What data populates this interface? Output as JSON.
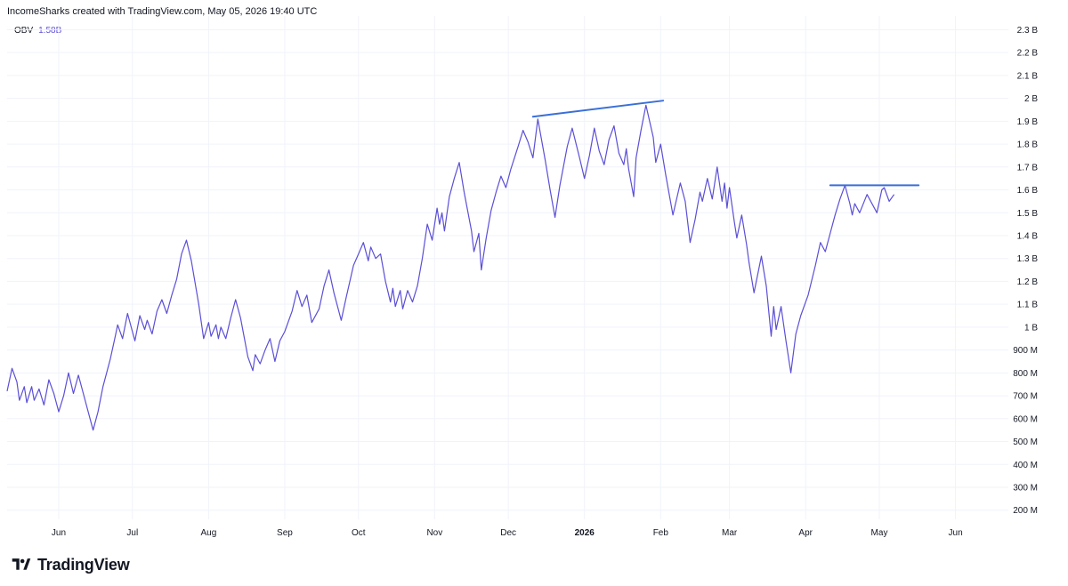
{
  "header": {
    "text": "IncomeSharks created with TradingView.com, May 05, 2026 19:40 UTC"
  },
  "legend": {
    "name": "OBV",
    "value": "1.58B"
  },
  "logo": {
    "text": "TradingView",
    "icon": "tradingview-logo-icon"
  },
  "colors": {
    "series": "#5b4fd6",
    "trendline": "#3a6fd8",
    "grid": "#f0f3fa",
    "text": "#131722"
  },
  "chart_data": {
    "type": "line",
    "title": "",
    "ylabel": "",
    "xlabel": "",
    "grid": true,
    "y_unit": "OBV",
    "ylim": [
      0.16,
      2.36
    ],
    "y_ticks": [
      {
        "value": 2.3,
        "label": "2.3 B"
      },
      {
        "value": 2.2,
        "label": "2.2 B"
      },
      {
        "value": 2.1,
        "label": "2.1 B"
      },
      {
        "value": 2.0,
        "label": "2 B"
      },
      {
        "value": 1.9,
        "label": "1.9 B"
      },
      {
        "value": 1.8,
        "label": "1.8 B"
      },
      {
        "value": 1.7,
        "label": "1.7 B"
      },
      {
        "value": 1.6,
        "label": "1.6 B"
      },
      {
        "value": 1.5,
        "label": "1.5 B"
      },
      {
        "value": 1.4,
        "label": "1.4 B"
      },
      {
        "value": 1.3,
        "label": "1.3 B"
      },
      {
        "value": 1.2,
        "label": "1.2 B"
      },
      {
        "value": 1.1,
        "label": "1.1 B"
      },
      {
        "value": 1.0,
        "label": "1 B"
      },
      {
        "value": 0.9,
        "label": "900 M"
      },
      {
        "value": 0.8,
        "label": "800 M"
      },
      {
        "value": 0.7,
        "label": "700 M"
      },
      {
        "value": 0.6,
        "label": "600 M"
      },
      {
        "value": 0.5,
        "label": "500 M"
      },
      {
        "value": 0.4,
        "label": "400 M"
      },
      {
        "value": 0.3,
        "label": "300 M"
      },
      {
        "value": 0.2,
        "label": "200 M"
      }
    ],
    "x_ticks": [
      {
        "date": "2025-06-01",
        "label": "Jun"
      },
      {
        "date": "2025-07-01",
        "label": "Jul"
      },
      {
        "date": "2025-08-01",
        "label": "Aug"
      },
      {
        "date": "2025-09-01",
        "label": "Sep"
      },
      {
        "date": "2025-10-01",
        "label": "Oct"
      },
      {
        "date": "2025-11-01",
        "label": "Nov"
      },
      {
        "date": "2025-12-01",
        "label": "Dec"
      },
      {
        "date": "2026-01-01",
        "label": "2026",
        "bold": true
      },
      {
        "date": "2026-02-01",
        "label": "Feb"
      },
      {
        "date": "2026-03-01",
        "label": "Mar"
      },
      {
        "date": "2026-04-01",
        "label": "Apr"
      },
      {
        "date": "2026-05-01",
        "label": "May"
      },
      {
        "date": "2026-06-01",
        "label": "Jun"
      }
    ],
    "xlim": [
      "2025-05-11",
      "2026-06-16"
    ],
    "series": [
      {
        "color": "#5b4fd6",
        "points": [
          [
            "2025-05-11",
            0.72
          ],
          [
            "2025-05-13",
            0.82
          ],
          [
            "2025-05-15",
            0.76
          ],
          [
            "2025-05-16",
            0.68
          ],
          [
            "2025-05-18",
            0.74
          ],
          [
            "2025-05-19",
            0.67
          ],
          [
            "2025-05-21",
            0.74
          ],
          [
            "2025-05-22",
            0.68
          ],
          [
            "2025-05-24",
            0.73
          ],
          [
            "2025-05-26",
            0.66
          ],
          [
            "2025-05-28",
            0.77
          ],
          [
            "2025-05-30",
            0.71
          ],
          [
            "2025-06-01",
            0.63
          ],
          [
            "2025-06-03",
            0.7
          ],
          [
            "2025-06-05",
            0.8
          ],
          [
            "2025-06-07",
            0.71
          ],
          [
            "2025-06-09",
            0.79
          ],
          [
            "2025-06-11",
            0.71
          ],
          [
            "2025-06-13",
            0.63
          ],
          [
            "2025-06-15",
            0.55
          ],
          [
            "2025-06-17",
            0.63
          ],
          [
            "2025-06-19",
            0.74
          ],
          [
            "2025-06-22",
            0.86
          ],
          [
            "2025-06-24",
            0.96
          ],
          [
            "2025-06-25",
            1.01
          ],
          [
            "2025-06-27",
            0.95
          ],
          [
            "2025-06-29",
            1.06
          ],
          [
            "2025-07-01",
            0.98
          ],
          [
            "2025-07-02",
            0.94
          ],
          [
            "2025-07-04",
            1.05
          ],
          [
            "2025-07-06",
            0.99
          ],
          [
            "2025-07-07",
            1.03
          ],
          [
            "2025-07-09",
            0.97
          ],
          [
            "2025-07-11",
            1.07
          ],
          [
            "2025-07-13",
            1.12
          ],
          [
            "2025-07-15",
            1.06
          ],
          [
            "2025-07-17",
            1.14
          ],
          [
            "2025-07-19",
            1.21
          ],
          [
            "2025-07-21",
            1.32
          ],
          [
            "2025-07-23",
            1.38
          ],
          [
            "2025-07-25",
            1.29
          ],
          [
            "2025-07-28",
            1.1
          ],
          [
            "2025-07-30",
            0.95
          ],
          [
            "2025-08-01",
            1.02
          ],
          [
            "2025-08-02",
            0.96
          ],
          [
            "2025-08-04",
            1.01
          ],
          [
            "2025-08-05",
            0.95
          ],
          [
            "2025-08-06",
            1.0
          ],
          [
            "2025-08-08",
            0.95
          ],
          [
            "2025-08-10",
            1.04
          ],
          [
            "2025-08-12",
            1.12
          ],
          [
            "2025-08-14",
            1.04
          ],
          [
            "2025-08-17",
            0.87
          ],
          [
            "2025-08-19",
            0.81
          ],
          [
            "2025-08-20",
            0.88
          ],
          [
            "2025-08-22",
            0.84
          ],
          [
            "2025-08-24",
            0.9
          ],
          [
            "2025-08-26",
            0.95
          ],
          [
            "2025-08-28",
            0.85
          ],
          [
            "2025-08-30",
            0.94
          ],
          [
            "2025-09-01",
            0.98
          ],
          [
            "2025-09-04",
            1.07
          ],
          [
            "2025-09-06",
            1.16
          ],
          [
            "2025-09-08",
            1.09
          ],
          [
            "2025-09-10",
            1.14
          ],
          [
            "2025-09-12",
            1.02
          ],
          [
            "2025-09-15",
            1.08
          ],
          [
            "2025-09-17",
            1.18
          ],
          [
            "2025-09-19",
            1.25
          ],
          [
            "2025-09-21",
            1.15
          ],
          [
            "2025-09-24",
            1.03
          ],
          [
            "2025-09-26",
            1.13
          ],
          [
            "2025-09-29",
            1.27
          ],
          [
            "2025-10-01",
            1.32
          ],
          [
            "2025-10-03",
            1.37
          ],
          [
            "2025-10-05",
            1.29
          ],
          [
            "2025-10-06",
            1.35
          ],
          [
            "2025-10-08",
            1.3
          ],
          [
            "2025-10-10",
            1.32
          ],
          [
            "2025-10-12",
            1.2
          ],
          [
            "2025-10-14",
            1.11
          ],
          [
            "2025-10-15",
            1.17
          ],
          [
            "2025-10-16",
            1.09
          ],
          [
            "2025-10-18",
            1.16
          ],
          [
            "2025-10-19",
            1.08
          ],
          [
            "2025-10-21",
            1.16
          ],
          [
            "2025-10-23",
            1.11
          ],
          [
            "2025-10-25",
            1.18
          ],
          [
            "2025-10-27",
            1.3
          ],
          [
            "2025-10-29",
            1.45
          ],
          [
            "2025-10-31",
            1.38
          ],
          [
            "2025-11-02",
            1.52
          ],
          [
            "2025-11-03",
            1.45
          ],
          [
            "2025-11-04",
            1.5
          ],
          [
            "2025-11-05",
            1.42
          ],
          [
            "2025-11-07",
            1.57
          ],
          [
            "2025-11-09",
            1.65
          ],
          [
            "2025-11-11",
            1.72
          ],
          [
            "2025-11-13",
            1.59
          ],
          [
            "2025-11-16",
            1.42
          ],
          [
            "2025-11-17",
            1.33
          ],
          [
            "2025-11-19",
            1.41
          ],
          [
            "2025-11-20",
            1.25
          ],
          [
            "2025-11-22",
            1.39
          ],
          [
            "2025-11-24",
            1.51
          ],
          [
            "2025-11-26",
            1.59
          ],
          [
            "2025-11-28",
            1.66
          ],
          [
            "2025-11-30",
            1.61
          ],
          [
            "2025-12-02",
            1.69
          ],
          [
            "2025-12-05",
            1.79
          ],
          [
            "2025-12-07",
            1.86
          ],
          [
            "2025-12-09",
            1.81
          ],
          [
            "2025-12-11",
            1.74
          ],
          [
            "2025-12-13",
            1.91
          ],
          [
            "2025-12-16",
            1.73
          ],
          [
            "2025-12-18",
            1.6
          ],
          [
            "2025-12-20",
            1.48
          ],
          [
            "2025-12-22",
            1.62
          ],
          [
            "2025-12-25",
            1.79
          ],
          [
            "2025-12-27",
            1.87
          ],
          [
            "2025-12-30",
            1.74
          ],
          [
            "2026-01-01",
            1.65
          ],
          [
            "2026-01-03",
            1.75
          ],
          [
            "2026-01-05",
            1.87
          ],
          [
            "2026-01-07",
            1.77
          ],
          [
            "2026-01-09",
            1.71
          ],
          [
            "2026-01-11",
            1.82
          ],
          [
            "2026-01-13",
            1.88
          ],
          [
            "2026-01-15",
            1.76
          ],
          [
            "2026-01-17",
            1.71
          ],
          [
            "2026-01-18",
            1.78
          ],
          [
            "2026-01-19",
            1.69
          ],
          [
            "2026-01-21",
            1.57
          ],
          [
            "2026-01-22",
            1.74
          ],
          [
            "2026-01-24",
            1.86
          ],
          [
            "2026-01-26",
            1.97
          ],
          [
            "2026-01-29",
            1.83
          ],
          [
            "2026-01-30",
            1.72
          ],
          [
            "2026-02-01",
            1.8
          ],
          [
            "2026-02-03",
            1.67
          ],
          [
            "2026-02-06",
            1.49
          ],
          [
            "2026-02-09",
            1.63
          ],
          [
            "2026-02-11",
            1.55
          ],
          [
            "2026-02-13",
            1.37
          ],
          [
            "2026-02-15",
            1.47
          ],
          [
            "2026-02-17",
            1.59
          ],
          [
            "2026-02-18",
            1.55
          ],
          [
            "2026-02-20",
            1.65
          ],
          [
            "2026-02-22",
            1.56
          ],
          [
            "2026-02-24",
            1.7
          ],
          [
            "2026-02-26",
            1.55
          ],
          [
            "2026-02-27",
            1.63
          ],
          [
            "2026-02-28",
            1.52
          ],
          [
            "2026-03-01",
            1.61
          ],
          [
            "2026-03-03",
            1.46
          ],
          [
            "2026-03-04",
            1.39
          ],
          [
            "2026-03-06",
            1.49
          ],
          [
            "2026-03-08",
            1.36
          ],
          [
            "2026-03-09",
            1.28
          ],
          [
            "2026-03-11",
            1.15
          ],
          [
            "2026-03-14",
            1.31
          ],
          [
            "2026-03-16",
            1.18
          ],
          [
            "2026-03-18",
            0.96
          ],
          [
            "2026-03-19",
            1.09
          ],
          [
            "2026-03-20",
            0.99
          ],
          [
            "2026-03-22",
            1.09
          ],
          [
            "2026-03-24",
            0.94
          ],
          [
            "2026-03-26",
            0.8
          ],
          [
            "2026-03-28",
            0.97
          ],
          [
            "2026-03-30",
            1.05
          ],
          [
            "2026-04-02",
            1.14
          ],
          [
            "2026-04-05",
            1.27
          ],
          [
            "2026-04-07",
            1.37
          ],
          [
            "2026-04-09",
            1.33
          ],
          [
            "2026-04-11",
            1.41
          ],
          [
            "2026-04-13",
            1.49
          ],
          [
            "2026-04-15",
            1.56
          ],
          [
            "2026-04-17",
            1.62
          ],
          [
            "2026-04-19",
            1.54
          ],
          [
            "2026-04-20",
            1.49
          ],
          [
            "2026-04-21",
            1.54
          ],
          [
            "2026-04-23",
            1.5
          ],
          [
            "2026-04-26",
            1.58
          ],
          [
            "2026-04-30",
            1.5
          ],
          [
            "2026-05-02",
            1.6
          ],
          [
            "2026-05-03",
            1.61
          ],
          [
            "2026-05-05",
            1.55
          ],
          [
            "2026-05-07",
            1.58
          ]
        ]
      }
    ],
    "annotations": [
      {
        "type": "trendline",
        "color": "#3a6fd8",
        "from": [
          "2025-12-11",
          1.92
        ],
        "to": [
          "2026-02-02",
          1.99
        ]
      },
      {
        "type": "trendline",
        "color": "#3a6fd8",
        "from": [
          "2026-04-11",
          1.62
        ],
        "to": [
          "2026-05-17",
          1.62
        ]
      }
    ]
  }
}
